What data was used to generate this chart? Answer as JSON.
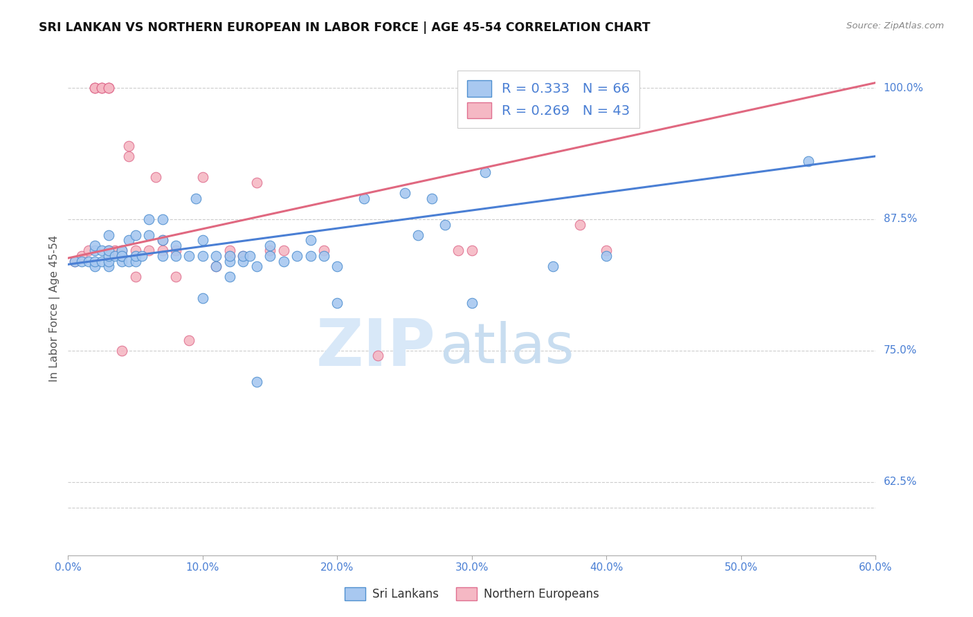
{
  "title": "SRI LANKAN VS NORTHERN EUROPEAN IN LABOR FORCE | AGE 45-54 CORRELATION CHART",
  "source": "Source: ZipAtlas.com",
  "ylabel_label": "In Labor Force | Age 45-54",
  "xlim": [
    0.0,
    0.6
  ],
  "ylim": [
    0.555,
    1.025
  ],
  "blue_R": 0.333,
  "blue_N": 66,
  "pink_R": 0.269,
  "pink_N": 43,
  "blue_color": "#a8c8f0",
  "pink_color": "#f5b8c4",
  "blue_edge_color": "#5090d0",
  "pink_edge_color": "#e07090",
  "blue_line_color": "#4a7fd4",
  "pink_line_color": "#e06880",
  "title_color": "#111111",
  "source_color": "#888888",
  "axis_tick_color": "#4a7fd4",
  "legend_text_color": "#4a7fd4",
  "grid_color": "#cccccc",
  "watermark_zip_color": "#d8e8f8",
  "watermark_atlas_color": "#c8ddf0",
  "blue_scatter_x": [
    0.005,
    0.01,
    0.015,
    0.02,
    0.02,
    0.02,
    0.02,
    0.025,
    0.025,
    0.03,
    0.03,
    0.03,
    0.03,
    0.03,
    0.035,
    0.04,
    0.04,
    0.04,
    0.04,
    0.045,
    0.045,
    0.05,
    0.05,
    0.05,
    0.055,
    0.06,
    0.06,
    0.07,
    0.07,
    0.07,
    0.08,
    0.08,
    0.09,
    0.095,
    0.1,
    0.1,
    0.1,
    0.11,
    0.11,
    0.12,
    0.12,
    0.12,
    0.13,
    0.13,
    0.135,
    0.14,
    0.14,
    0.15,
    0.15,
    0.16,
    0.17,
    0.18,
    0.18,
    0.19,
    0.2,
    0.2,
    0.22,
    0.25,
    0.26,
    0.27,
    0.28,
    0.3,
    0.31,
    0.36,
    0.4,
    0.55
  ],
  "blue_scatter_y": [
    0.835,
    0.835,
    0.835,
    0.83,
    0.835,
    0.845,
    0.85,
    0.835,
    0.845,
    0.83,
    0.835,
    0.84,
    0.845,
    0.86,
    0.84,
    0.835,
    0.84,
    0.845,
    0.84,
    0.835,
    0.855,
    0.835,
    0.84,
    0.86,
    0.84,
    0.875,
    0.86,
    0.84,
    0.855,
    0.875,
    0.84,
    0.85,
    0.84,
    0.895,
    0.8,
    0.84,
    0.855,
    0.83,
    0.84,
    0.82,
    0.835,
    0.84,
    0.835,
    0.84,
    0.84,
    0.72,
    0.83,
    0.84,
    0.85,
    0.835,
    0.84,
    0.84,
    0.855,
    0.84,
    0.795,
    0.83,
    0.895,
    0.9,
    0.86,
    0.895,
    0.87,
    0.795,
    0.92,
    0.83,
    0.84,
    0.93
  ],
  "pink_scatter_x": [
    0.005,
    0.01,
    0.015,
    0.02,
    0.02,
    0.02,
    0.025,
    0.025,
    0.025,
    0.03,
    0.03,
    0.03,
    0.03,
    0.035,
    0.04,
    0.04,
    0.04,
    0.04,
    0.045,
    0.045,
    0.05,
    0.05,
    0.06,
    0.065,
    0.07,
    0.07,
    0.08,
    0.08,
    0.09,
    0.1,
    0.11,
    0.12,
    0.12,
    0.13,
    0.14,
    0.15,
    0.16,
    0.19,
    0.23,
    0.29,
    0.3,
    0.38,
    0.4
  ],
  "pink_scatter_y": [
    0.835,
    0.84,
    0.845,
    1.0,
    1.0,
    1.0,
    1.0,
    1.0,
    1.0,
    1.0,
    1.0,
    1.0,
    0.845,
    0.845,
    0.84,
    0.84,
    0.845,
    0.75,
    0.935,
    0.945,
    0.845,
    0.82,
    0.845,
    0.915,
    0.845,
    0.855,
    0.845,
    0.82,
    0.76,
    0.915,
    0.83,
    0.84,
    0.845,
    0.84,
    0.91,
    0.845,
    0.845,
    0.845,
    0.745,
    0.845,
    0.845,
    0.87,
    0.845
  ],
  "blue_trend_x": [
    0.0,
    0.6
  ],
  "blue_trend_y0": 0.832,
  "blue_trend_y1": 0.935,
  "pink_trend_x": [
    0.0,
    0.6
  ],
  "pink_trend_y0": 0.838,
  "pink_trend_y1": 1.005
}
